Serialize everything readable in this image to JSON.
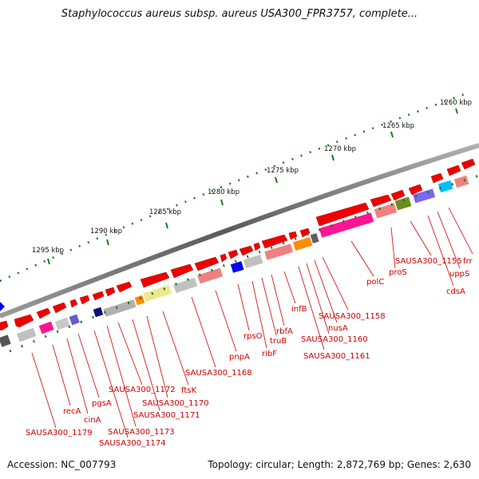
{
  "title": "Staphylococcus aureus subsp. aureus USA300_FPR3757, complete...",
  "footer": {
    "accession": "Accession: NC_007793",
    "summary": "Topology: circular; Length: 2,872,769 bp; Genes: 2,630"
  },
  "ticks": [
    "1260 kbp",
    "1265 kbp",
    "1270 kbp",
    "1275 kbp",
    "1280 kbp",
    "1285 kbp",
    "1290 kbp",
    "1295 kbp"
  ],
  "gene_labels": [
    "frr",
    "uppS",
    "cdsA",
    "SAUSA300_1155",
    "proS",
    "polC",
    "SAUSA300_1158",
    "nusA",
    "SAUSA300_1160",
    "SAUSA300_1161",
    "infB",
    "rbfA",
    "truB",
    "ribF",
    "rpsO",
    "pnpA",
    "SAUSA300_1168",
    "ftsK",
    "SAUSA300_1170",
    "SAUSA300_1171",
    "SAUSA300_1172",
    "SAUSA300_1173",
    "SAUSA300_1174",
    "pgsA",
    "cinA",
    "recA",
    "SAUSA300_1179"
  ],
  "colors": {
    "backbone": "#7a7a7a",
    "forward_gene": "#ee0000",
    "label": "#cc0000",
    "tick": "#1a7a1a"
  }
}
